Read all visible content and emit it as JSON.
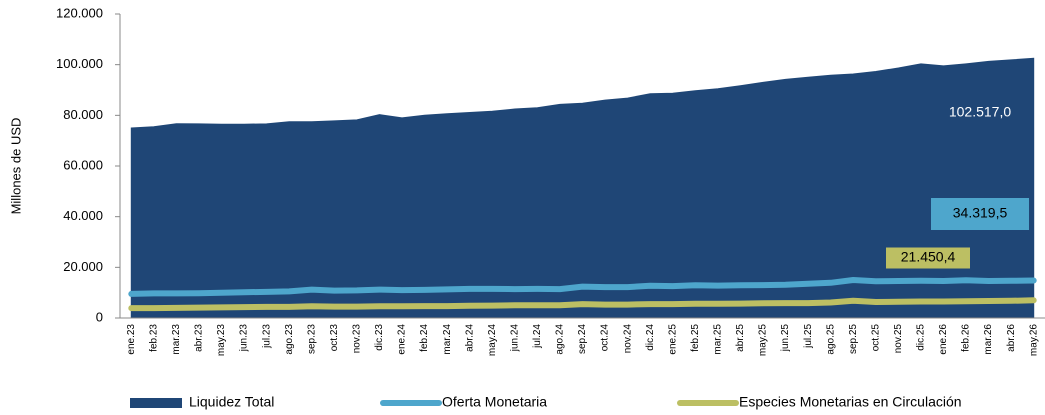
{
  "chart_data": {
    "type": "area-line",
    "y_label": "Millones de  USD",
    "categories": [
      "ene.23",
      "feb.23",
      "mar.23",
      "abr.23",
      "may.23",
      "jun.23",
      "jul.23",
      "ago.23",
      "sep.23",
      "oct.23",
      "nov.23",
      "dic.23",
      "ene.24",
      "feb.24",
      "mar.24",
      "abr.24",
      "may.24",
      "jun.24",
      "jul.24",
      "ago.24",
      "sep.24",
      "oct.24",
      "nov.24",
      "dic.24",
      "ene.25",
      "feb.25",
      "mar.25",
      "abr.25",
      "may.25",
      "jun.25",
      "jul.25",
      "ago.25",
      "sep.25",
      "oct.25",
      "nov.25",
      "dic.25",
      "ene.26",
      "feb.26",
      "mar.26",
      "abr.26",
      "may.26"
    ],
    "series": [
      {
        "name": "Liquidez Total",
        "color": "#1f4676",
        "kind": "area",
        "values": [
          75000,
          75500,
          76700,
          76600,
          76500,
          76500,
          76600,
          77500,
          77500,
          77800,
          78200,
          80300,
          79000,
          80000,
          80600,
          81100,
          81600,
          82500,
          83000,
          84300,
          84800,
          86000,
          86800,
          88500,
          88700,
          89700,
          90500,
          91700,
          93000,
          94200,
          95000,
          95800,
          96300,
          97300,
          98700,
          100300,
          99500,
          100300,
          101300,
          101900,
          102517
        ]
      },
      {
        "name": "Oferta Monetaria",
        "color": "#4ea6cc",
        "kind": "line",
        "values": [
          9500,
          9700,
          9700,
          9800,
          10000,
          10200,
          10300,
          10500,
          11200,
          10800,
          10900,
          11200,
          11000,
          11100,
          11300,
          11500,
          11500,
          11400,
          11500,
          11400,
          12400,
          12200,
          12200,
          12700,
          12600,
          12900,
          12800,
          12900,
          13000,
          13100,
          13500,
          13900,
          15000,
          14500,
          14600,
          14700,
          14600,
          14900,
          14600,
          14700,
          14800
        ]
      },
      {
        "name": "Especies Monetarias en Circulación",
        "color": "#bcbf63",
        "kind": "line",
        "values": [
          3900,
          3900,
          4000,
          4100,
          4200,
          4300,
          4400,
          4400,
          4600,
          4500,
          4500,
          4600,
          4600,
          4700,
          4700,
          4800,
          4900,
          5000,
          5000,
          5000,
          5500,
          5300,
          5300,
          5500,
          5500,
          5600,
          5600,
          5700,
          5800,
          5900,
          5900,
          6100,
          6800,
          6300,
          6400,
          6500,
          6500,
          6600,
          6700,
          6800,
          7000
        ]
      }
    ],
    "annotations": [
      "102.517,0",
      "34.319,5",
      "21.450,4"
    ],
    "ylim": [
      0,
      120000
    ],
    "yticks": [
      0,
      {
        "value": 20000,
        "label": "20.000"
      },
      {
        "value": 40000,
        "label": "40.000"
      },
      {
        "value": 60000,
        "label": "60.000"
      },
      {
        "value": 80000,
        "label": "80.000"
      },
      {
        "value": 100000,
        "label": "100.000"
      },
      {
        "value": 120000,
        "label": "120.000"
      }
    ]
  }
}
